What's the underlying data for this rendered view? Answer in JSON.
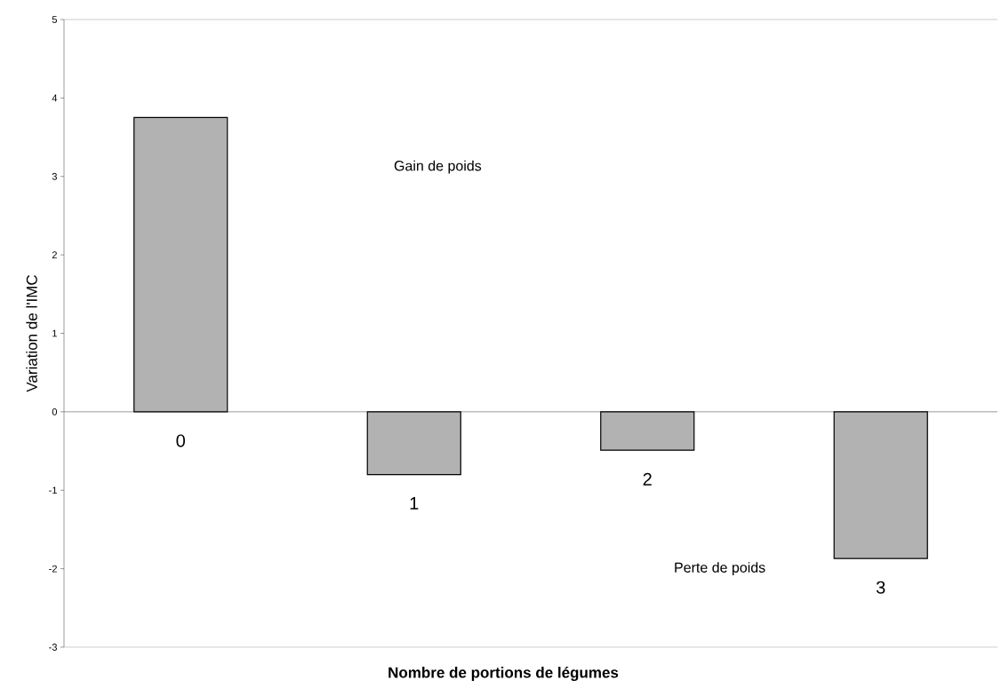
{
  "chart_data": {
    "type": "bar",
    "xlabel": "Nombre de portions de légumes",
    "ylabel": "Variation de l'IMC",
    "categories": [
      "0",
      "1",
      "2",
      "3"
    ],
    "values": [
      3.75,
      -0.8,
      -0.49,
      -1.87
    ],
    "color": "#b2b2b2",
    "ylim": [
      -3,
      5
    ],
    "yticks": [
      -3,
      -2,
      -1,
      0,
      1,
      2,
      3,
      4,
      5
    ],
    "annotations": [
      "Gain de poids",
      "Perte de poids"
    ]
  }
}
